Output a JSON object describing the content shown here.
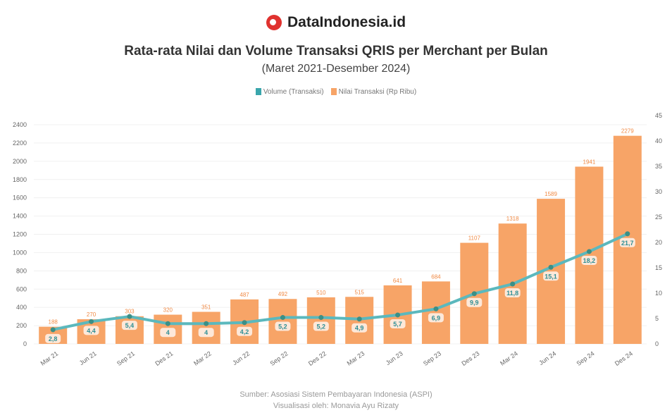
{
  "brand": {
    "name": "DataIndonesia.id"
  },
  "chart_data": {
    "type": "bar+line",
    "title": "Rata-rata Nilai dan Volume Transaksi QRIS per Merchant per Bulan",
    "subtitle": "(Maret 2021-Desember 2024)",
    "categories": [
      "Mar 21",
      "Jun 21",
      "Sep 21",
      "Des 21",
      "Mar 22",
      "Jun 22",
      "Sep 22",
      "Des 22",
      "Mar 23",
      "Jun 23",
      "Sep 23",
      "Des 23",
      "Mar 24",
      "Jun 24",
      "Sep 24",
      "Des 24"
    ],
    "series": [
      {
        "name": "Volume (Transaksi)",
        "type": "line",
        "axis": "right",
        "color": "#5bb8bd",
        "values": [
          2.8,
          4.4,
          5.4,
          4,
          4,
          4.2,
          5.2,
          5.2,
          4.9,
          5.7,
          6.9,
          9.9,
          11.8,
          15.1,
          18.2,
          21.7
        ],
        "labels": [
          "2,8",
          "4,4",
          "5,4",
          "4",
          "4",
          "4,2",
          "5,2",
          "5,2",
          "4,9",
          "5,7",
          "6,9",
          "9,9",
          "11,8",
          "15,1",
          "18,2",
          "21,7"
        ]
      },
      {
        "name": "Nilai Transaksi (Rp Ribu)",
        "type": "bar",
        "axis": "left",
        "color": "#f7a467",
        "values": [
          188,
          270,
          303,
          320,
          351,
          487,
          492,
          510,
          515,
          641,
          684,
          1107,
          1318,
          1589,
          1941,
          2279
        ]
      }
    ],
    "y_left": {
      "min": 0,
      "max": 2400,
      "ticks": [
        0,
        200,
        400,
        600,
        800,
        1000,
        1200,
        1400,
        1600,
        1800,
        2000,
        2200,
        2400
      ]
    },
    "y_right": {
      "min": 0,
      "max": 45,
      "ticks": [
        0,
        5,
        10,
        15,
        20,
        25,
        30,
        35,
        40,
        45
      ]
    },
    "legend": "top",
    "grid": true
  },
  "footer": {
    "source": "Sumber: Asosiasi Sistem Pembayaran Indonesia (ASPI)",
    "credit": "Visualisasi oleh: Monavia Ayu Rizaty"
  }
}
